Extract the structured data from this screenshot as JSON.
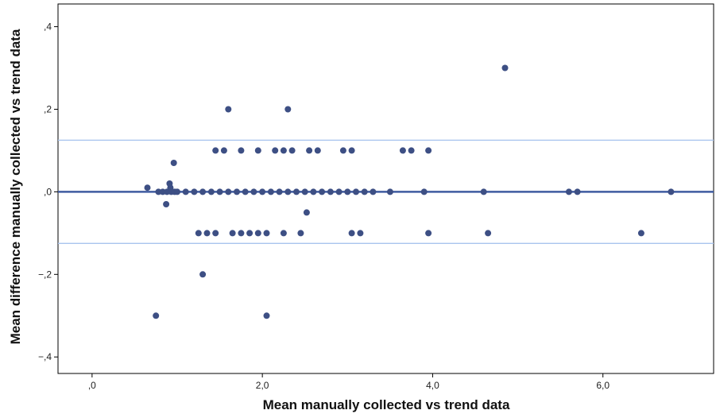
{
  "chart_data": {
    "type": "scatter",
    "title": "",
    "xlabel": "Mean manually collected vs trend data",
    "ylabel": "Mean difference manually collected vs trend data",
    "xlim": [
      -0.4,
      7.3
    ],
    "ylim": [
      -0.44,
      0.455
    ],
    "xticks": [
      {
        "value": 0,
        "label": ",0"
      },
      {
        "value": 2,
        "label": "2,0"
      },
      {
        "value": 4,
        "label": "4,0"
      },
      {
        "value": 6,
        "label": "6,0"
      }
    ],
    "yticks": [
      {
        "value": 0.4,
        "label": ",4"
      },
      {
        "value": 0.2,
        "label": ",2"
      },
      {
        "value": 0,
        "label": ",0"
      },
      {
        "value": -0.2,
        "label": "−,2"
      },
      {
        "value": -0.4,
        "label": "−,4"
      }
    ],
    "reference_lines": [
      {
        "y": 0.0,
        "color": "#3f5ba0",
        "role": "mean"
      },
      {
        "y": 0.125,
        "color": "#a9c4ee",
        "role": "upper-limit"
      },
      {
        "y": -0.125,
        "color": "#a9c4ee",
        "role": "lower-limit"
      }
    ],
    "point_color": "#3d4f84",
    "grid": false,
    "points": [
      [
        0.65,
        0.01
      ],
      [
        0.78,
        0
      ],
      [
        0.83,
        0
      ],
      [
        0.88,
        0
      ],
      [
        0.93,
        0
      ],
      [
        0.97,
        0
      ],
      [
        1.0,
        0
      ],
      [
        0.91,
        0.02
      ],
      [
        0.92,
        0.01
      ],
      [
        0.96,
        0.07
      ],
      [
        0.87,
        -0.03
      ],
      [
        0.75,
        -0.3
      ],
      [
        1.1,
        0
      ],
      [
        1.2,
        0
      ],
      [
        1.3,
        0
      ],
      [
        1.4,
        0
      ],
      [
        1.5,
        0
      ],
      [
        1.6,
        0
      ],
      [
        1.7,
        0
      ],
      [
        1.8,
        0
      ],
      [
        1.9,
        0
      ],
      [
        2.0,
        0
      ],
      [
        2.1,
        0
      ],
      [
        2.2,
        0
      ],
      [
        2.3,
        0
      ],
      [
        2.4,
        0
      ],
      [
        2.5,
        0
      ],
      [
        2.6,
        0
      ],
      [
        2.7,
        0
      ],
      [
        2.8,
        0
      ],
      [
        2.9,
        0
      ],
      [
        3.0,
        0
      ],
      [
        3.1,
        0
      ],
      [
        3.2,
        0
      ],
      [
        3.3,
        0
      ],
      [
        3.5,
        0
      ],
      [
        3.9,
        0
      ],
      [
        4.6,
        0
      ],
      [
        5.6,
        0
      ],
      [
        5.7,
        0
      ],
      [
        6.8,
        0
      ],
      [
        1.45,
        0.1
      ],
      [
        1.55,
        0.1
      ],
      [
        1.75,
        0.1
      ],
      [
        1.95,
        0.1
      ],
      [
        2.15,
        0.1
      ],
      [
        2.25,
        0.1
      ],
      [
        2.35,
        0.1
      ],
      [
        2.55,
        0.1
      ],
      [
        2.65,
        0.1
      ],
      [
        2.95,
        0.1
      ],
      [
        3.05,
        0.1
      ],
      [
        3.65,
        0.1
      ],
      [
        3.75,
        0.1
      ],
      [
        3.95,
        0.1
      ],
      [
        1.6,
        0.2
      ],
      [
        2.3,
        0.2
      ],
      [
        4.85,
        0.3
      ],
      [
        1.25,
        -0.1
      ],
      [
        1.35,
        -0.1
      ],
      [
        1.45,
        -0.1
      ],
      [
        1.65,
        -0.1
      ],
      [
        1.75,
        -0.1
      ],
      [
        1.85,
        -0.1
      ],
      [
        1.95,
        -0.1
      ],
      [
        2.05,
        -0.1
      ],
      [
        2.25,
        -0.1
      ],
      [
        2.45,
        -0.1
      ],
      [
        3.05,
        -0.1
      ],
      [
        3.15,
        -0.1
      ],
      [
        3.95,
        -0.1
      ],
      [
        4.65,
        -0.1
      ],
      [
        6.45,
        -0.1
      ],
      [
        2.52,
        -0.05
      ],
      [
        1.3,
        -0.2
      ],
      [
        2.05,
        -0.3
      ]
    ]
  }
}
